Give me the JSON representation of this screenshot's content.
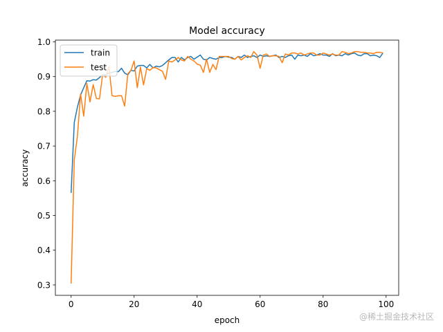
{
  "chart_data": {
    "type": "line",
    "title": "Model accuracy",
    "xlabel": "epoch",
    "ylabel": "accuracy",
    "xlim": [
      -5,
      104
    ],
    "ylim": [
      0.27,
      1.005
    ],
    "xticks": [
      0,
      20,
      40,
      60,
      80,
      100
    ],
    "yticks": [
      0.3,
      0.4,
      0.5,
      0.6,
      0.7,
      0.8,
      0.9,
      1.0
    ],
    "ytick_labels": [
      "0.3",
      "0.4",
      "0.5",
      "0.6",
      "0.7",
      "0.8",
      "0.9",
      "1.0"
    ],
    "legend_position": "top-left",
    "grid": false,
    "series": [
      {
        "name": "train",
        "color": "#1f77b4",
        "values": [
          0.565,
          0.768,
          0.812,
          0.847,
          0.868,
          0.888,
          0.887,
          0.891,
          0.89,
          0.897,
          0.905,
          0.905,
          0.91,
          0.912,
          0.915,
          0.914,
          0.924,
          0.91,
          0.905,
          0.918,
          0.916,
          0.93,
          0.932,
          0.932,
          0.925,
          0.935,
          0.925,
          0.93,
          0.928,
          0.932,
          0.94,
          0.948,
          0.955,
          0.955,
          0.942,
          0.955,
          0.948,
          0.955,
          0.958,
          0.95,
          0.956,
          0.962,
          0.95,
          0.948,
          0.955,
          0.952,
          0.95,
          0.955,
          0.955,
          0.958,
          0.956,
          0.955,
          0.95,
          0.958,
          0.955,
          0.962,
          0.955,
          0.958,
          0.96,
          0.955,
          0.962,
          0.958,
          0.96,
          0.958,
          0.96,
          0.962,
          0.955,
          0.958,
          0.955,
          0.96,
          0.962,
          0.95,
          0.962,
          0.96,
          0.962,
          0.958,
          0.966,
          0.96,
          0.962,
          0.966,
          0.962,
          0.962,
          0.958,
          0.966,
          0.96,
          0.962,
          0.96,
          0.966,
          0.962,
          0.966,
          0.968,
          0.962,
          0.96,
          0.966,
          0.966,
          0.96,
          0.962,
          0.96,
          0.955,
          0.968
        ]
      },
      {
        "name": "test",
        "color": "#ff7f0e",
        "values": [
          0.304,
          0.66,
          0.728,
          0.85,
          0.786,
          0.88,
          0.827,
          0.877,
          0.837,
          0.836,
          0.905,
          0.898,
          0.928,
          0.845,
          0.843,
          0.845,
          0.845,
          0.815,
          0.908,
          0.918,
          0.945,
          0.868,
          0.927,
          0.876,
          0.923,
          0.918,
          0.926,
          0.925,
          0.92,
          0.915,
          0.892,
          0.945,
          0.942,
          0.948,
          0.955,
          0.948,
          0.945,
          0.958,
          0.95,
          0.945,
          0.936,
          0.933,
          0.912,
          0.95,
          0.912,
          0.935,
          0.92,
          0.958,
          0.958,
          0.958,
          0.958,
          0.952,
          0.95,
          0.958,
          0.948,
          0.955,
          0.96,
          0.955,
          0.972,
          0.962,
          0.924,
          0.962,
          0.965,
          0.958,
          0.96,
          0.96,
          0.958,
          0.94,
          0.965,
          0.962,
          0.968,
          0.968,
          0.965,
          0.968,
          0.962,
          0.965,
          0.968,
          0.968,
          0.962,
          0.962,
          0.968,
          0.965,
          0.962,
          0.965,
          0.962,
          0.962,
          0.972,
          0.97,
          0.966,
          0.968,
          0.972,
          0.972,
          0.97,
          0.97,
          0.968,
          0.968,
          0.966,
          0.97,
          0.97,
          0.968
        ]
      }
    ]
  },
  "watermark": "@稀土掘金技术社区"
}
